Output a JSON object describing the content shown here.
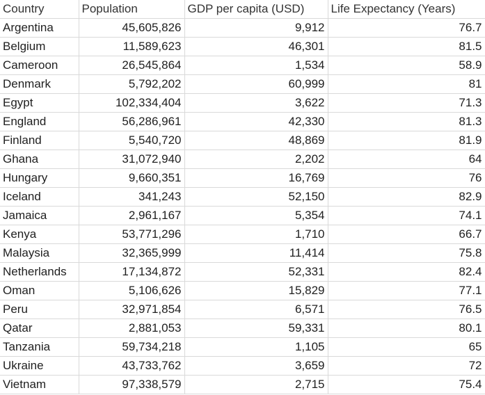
{
  "columns": [
    "Country",
    "Population",
    "GDP per capita (USD)",
    "Life Expectancy (Years)"
  ],
  "rows": [
    {
      "country": "Argentina",
      "population": "45,605,826",
      "gdp": "9,912",
      "life": "76.7"
    },
    {
      "country": "Belgium",
      "population": "11,589,623",
      "gdp": "46,301",
      "life": "81.5"
    },
    {
      "country": "Cameroon",
      "population": "26,545,864",
      "gdp": "1,534",
      "life": "58.9"
    },
    {
      "country": "Denmark",
      "population": "5,792,202",
      "gdp": "60,999",
      "life": "81"
    },
    {
      "country": "Egypt",
      "population": "102,334,404",
      "gdp": "3,622",
      "life": "71.3"
    },
    {
      "country": "England",
      "population": "56,286,961",
      "gdp": "42,330",
      "life": "81.3"
    },
    {
      "country": "Finland",
      "population": "5,540,720",
      "gdp": "48,869",
      "life": "81.9"
    },
    {
      "country": "Ghana",
      "population": "31,072,940",
      "gdp": "2,202",
      "life": "64"
    },
    {
      "country": "Hungary",
      "population": "9,660,351",
      "gdp": "16,769",
      "life": "76"
    },
    {
      "country": "Iceland",
      "population": "341,243",
      "gdp": "52,150",
      "life": "82.9"
    },
    {
      "country": "Jamaica",
      "population": "2,961,167",
      "gdp": "5,354",
      "life": "74.1"
    },
    {
      "country": "Kenya",
      "population": "53,771,296",
      "gdp": "1,710",
      "life": "66.7"
    },
    {
      "country": "Malaysia",
      "population": "32,365,999",
      "gdp": "11,414",
      "life": "75.8"
    },
    {
      "country": "Netherlands",
      "population": "17,134,872",
      "gdp": "52,331",
      "life": "82.4"
    },
    {
      "country": "Oman",
      "population": "5,106,626",
      "gdp": "15,829",
      "life": "77.1"
    },
    {
      "country": "Peru",
      "population": "32,971,854",
      "gdp": "6,571",
      "life": "76.5"
    },
    {
      "country": "Qatar",
      "population": "2,881,053",
      "gdp": "59,331",
      "life": "80.1"
    },
    {
      "country": "Tanzania",
      "population": "59,734,218",
      "gdp": "1,105",
      "life": "65"
    },
    {
      "country": "Ukraine",
      "population": "43,733,762",
      "gdp": "3,659",
      "life": "72"
    },
    {
      "country": "Vietnam",
      "population": "97,338,579",
      "gdp": "2,715",
      "life": "75.4"
    }
  ]
}
